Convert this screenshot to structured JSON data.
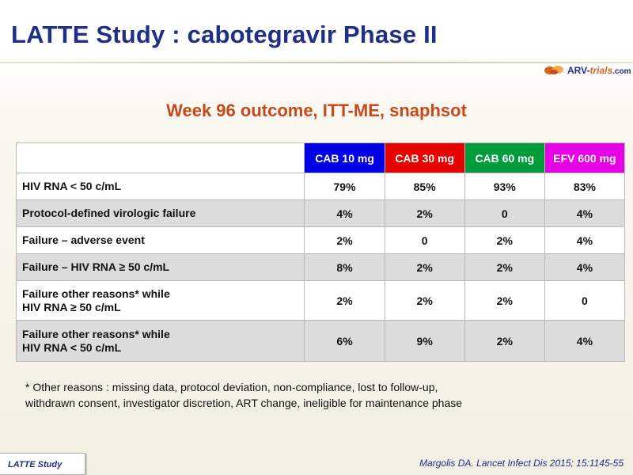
{
  "title": "LATTE Study : cabotegravir Phase II",
  "logo": {
    "part1": "ARV-",
    "part2": "trials",
    "part3": ".com"
  },
  "subtitle": "Week 96 outcome, ITT-ME, snaphsot",
  "table": {
    "headers": [
      {
        "label": "CAB 10 mg",
        "color": "#0000e6"
      },
      {
        "label": "CAB 30 mg",
        "color": "#e60000"
      },
      {
        "label": "CAB 60 mg",
        "color": "#009b3a"
      },
      {
        "label": "EFV 600 mg",
        "color": "#e600e6"
      }
    ],
    "rows": [
      {
        "label_line1": "HIV RNA < 50 c/mL",
        "label_line2": "",
        "values": [
          "79%",
          "85%",
          "93%",
          "83%"
        ]
      },
      {
        "label_line1": "Protocol-defined virologic failure",
        "label_line2": "",
        "values": [
          "4%",
          "2%",
          "0",
          "4%"
        ]
      },
      {
        "label_line1": "Failure – adverse event",
        "label_line2": "",
        "values": [
          "2%",
          "0",
          "2%",
          "4%"
        ]
      },
      {
        "label_line1": "Failure – HIV RNA ≥ 50 c/mL",
        "label_line2": "",
        "values": [
          "8%",
          "2%",
          "2%",
          "4%"
        ]
      },
      {
        "label_line1": "Failure other reasons* while",
        "label_line2": "HIV RNA ≥ 50 c/mL",
        "values": [
          "2%",
          "2%",
          "2%",
          "0"
        ]
      },
      {
        "label_line1": "Failure other reasons* while",
        "label_line2": "HIV RNA < 50 c/mL",
        "values": [
          "6%",
          "9%",
          "2%",
          "4%"
        ]
      }
    ]
  },
  "footnote": {
    "line1": "* Other reasons : missing data, protocol deviation, non-compliance,  lost to follow-up,",
    "line2": "withdrawn consent, investigator discretion, ART change, ineligible for maintenance phase"
  },
  "tag": "LATTE Study",
  "citation": "Margolis DA. Lancet Infect Dis 2015; 15:1145-55"
}
